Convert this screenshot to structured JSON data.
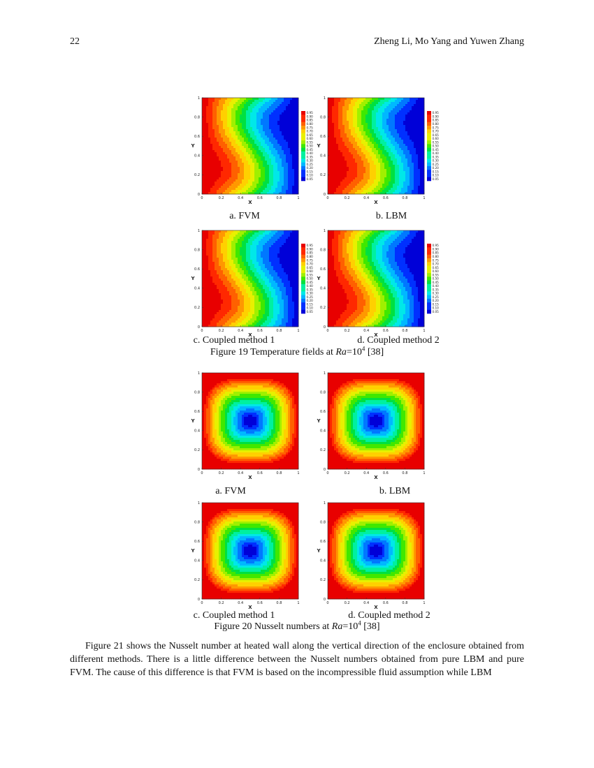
{
  "header": {
    "page_number": "22",
    "authors": "Zheng Li, Mo Yang and Yuwen Zhang"
  },
  "figure19": {
    "panels": [
      {
        "caption": "a. FVM"
      },
      {
        "caption": "b. LBM"
      },
      {
        "caption": "c. Coupled method 1"
      },
      {
        "caption": "d. Coupled method 2"
      }
    ],
    "caption_prefix": "Figure 19 Temperature fields at ",
    "caption_var": "Ra",
    "caption_eq": "=10",
    "caption_exp": "4",
    "caption_ref": " [38]",
    "colorbar_levels": [
      "0.95",
      "0.90",
      "0.85",
      "0.80",
      "0.75",
      "0.70",
      "0.65",
      "0.60",
      "0.55",
      "0.50",
      "0.45",
      "0.40",
      "0.35",
      "0.30",
      "0.25",
      "0.20",
      "0.15",
      "0.10",
      "0.05"
    ]
  },
  "figure20": {
    "panels": [
      {
        "caption": "a. FVM"
      },
      {
        "caption": "b. LBM"
      },
      {
        "caption": "c. Coupled method 1"
      },
      {
        "caption": "d. Coupled method 2"
      }
    ],
    "caption_prefix": "Figure 20 Nusselt numbers at ",
    "caption_var": "Ra",
    "caption_eq": "=10",
    "caption_exp": "4",
    "caption_ref": " [38]"
  },
  "axes": {
    "xlabel": "X",
    "ylabel": "Y",
    "x_ticks": [
      "0",
      "0.2",
      "0.4",
      "0.6",
      "0.8",
      "1"
    ],
    "y_ticks": [
      "0",
      "0.2",
      "0.4",
      "0.6",
      "0.8",
      "1"
    ]
  },
  "body_text": "Figure 21 shows the Nusselt number at heated wall along the vertical direction of the enclosure obtained from different methods. There is a little difference between the Nusselt numbers obtained from pure LBM and pure FVM. The cause of this difference is that FVM is based on the incompressible fluid assumption while LBM",
  "palette": [
    "#0000d8",
    "#0030ff",
    "#0078ff",
    "#00b8ff",
    "#00e8e8",
    "#00f0a0",
    "#00e040",
    "#40e800",
    "#a0f000",
    "#e8f000",
    "#ffd000",
    "#ff9800",
    "#ff6000",
    "#ff2800",
    "#e80000"
  ]
}
